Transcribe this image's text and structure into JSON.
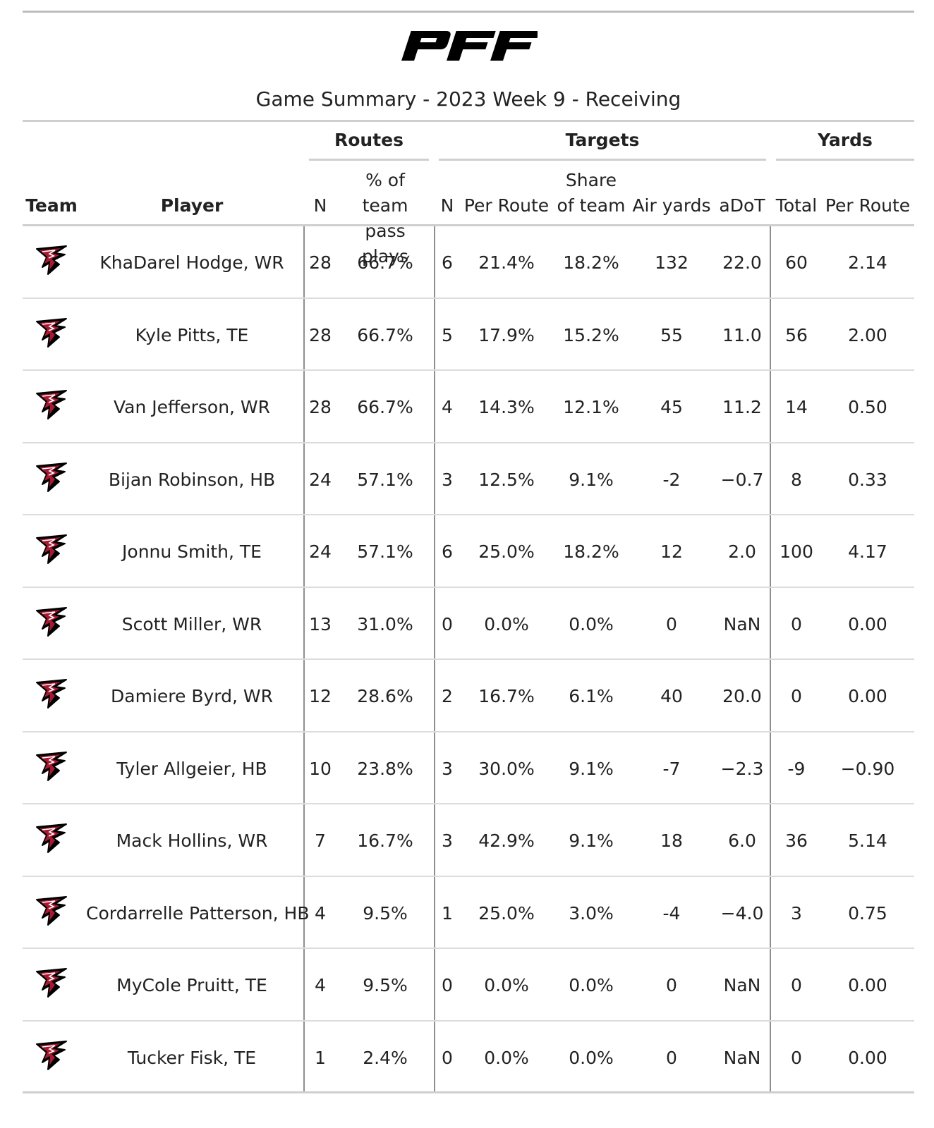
{
  "brand": {
    "logo_text": "PFF",
    "logo_color": "#000000"
  },
  "title": "Game Summary - 2023 Week 9 - Receiving",
  "spanners": {
    "routes": "Routes",
    "targets": "Targets",
    "yards": "Yards"
  },
  "columns": {
    "team": "Team",
    "player": "Player",
    "routes_n": "N",
    "routes_pct_line1": "% of team",
    "routes_pct_line2": "pass plays",
    "targets_n": "N",
    "targets_per_route": "Per Route",
    "targets_share_line1": "Share",
    "targets_share_line2": "of team",
    "air_yards": "Air yards",
    "adot": "aDoT",
    "yards_total": "Total",
    "yards_per_route": "Per Route"
  },
  "team_icon": "falcons-logo-icon",
  "colors": {
    "falcons_red": "#a71930",
    "falcons_black": "#000000"
  },
  "rows": [
    {
      "player": "KhaDarel Hodge, WR",
      "routes_n": "28",
      "routes_pct": "66.7%",
      "targets_n": "6",
      "targets_per_route": "21.4%",
      "target_share": "18.2%",
      "air_yards": "132",
      "adot": "22.0",
      "yards_total": "60",
      "yards_per_route": "2.14"
    },
    {
      "player": "Kyle Pitts, TE",
      "routes_n": "28",
      "routes_pct": "66.7%",
      "targets_n": "5",
      "targets_per_route": "17.9%",
      "target_share": "15.2%",
      "air_yards": "55",
      "adot": "11.0",
      "yards_total": "56",
      "yards_per_route": "2.00"
    },
    {
      "player": "Van Jefferson, WR",
      "routes_n": "28",
      "routes_pct": "66.7%",
      "targets_n": "4",
      "targets_per_route": "14.3%",
      "target_share": "12.1%",
      "air_yards": "45",
      "adot": "11.2",
      "yards_total": "14",
      "yards_per_route": "0.50"
    },
    {
      "player": "Bijan Robinson, HB",
      "routes_n": "24",
      "routes_pct": "57.1%",
      "targets_n": "3",
      "targets_per_route": "12.5%",
      "target_share": "9.1%",
      "air_yards": "-2",
      "adot": "−0.7",
      "yards_total": "8",
      "yards_per_route": "0.33"
    },
    {
      "player": "Jonnu Smith, TE",
      "routes_n": "24",
      "routes_pct": "57.1%",
      "targets_n": "6",
      "targets_per_route": "25.0%",
      "target_share": "18.2%",
      "air_yards": "12",
      "adot": "2.0",
      "yards_total": "100",
      "yards_per_route": "4.17"
    },
    {
      "player": "Scott Miller, WR",
      "routes_n": "13",
      "routes_pct": "31.0%",
      "targets_n": "0",
      "targets_per_route": "0.0%",
      "target_share": "0.0%",
      "air_yards": "0",
      "adot": "NaN",
      "yards_total": "0",
      "yards_per_route": "0.00"
    },
    {
      "player": "Damiere Byrd, WR",
      "routes_n": "12",
      "routes_pct": "28.6%",
      "targets_n": "2",
      "targets_per_route": "16.7%",
      "target_share": "6.1%",
      "air_yards": "40",
      "adot": "20.0",
      "yards_total": "0",
      "yards_per_route": "0.00"
    },
    {
      "player": "Tyler Allgeier, HB",
      "routes_n": "10",
      "routes_pct": "23.8%",
      "targets_n": "3",
      "targets_per_route": "30.0%",
      "target_share": "9.1%",
      "air_yards": "-7",
      "adot": "−2.3",
      "yards_total": "-9",
      "yards_per_route": "−0.90"
    },
    {
      "player": "Mack Hollins, WR",
      "routes_n": "7",
      "routes_pct": "16.7%",
      "targets_n": "3",
      "targets_per_route": "42.9%",
      "target_share": "9.1%",
      "air_yards": "18",
      "adot": "6.0",
      "yards_total": "36",
      "yards_per_route": "5.14"
    },
    {
      "player": "Cordarrelle Patterson, HB",
      "routes_n": "4",
      "routes_pct": "9.5%",
      "targets_n": "1",
      "targets_per_route": "25.0%",
      "target_share": "3.0%",
      "air_yards": "-4",
      "adot": "−4.0",
      "yards_total": "3",
      "yards_per_route": "0.75"
    },
    {
      "player": "MyCole Pruitt, TE",
      "routes_n": "4",
      "routes_pct": "9.5%",
      "targets_n": "0",
      "targets_per_route": "0.0%",
      "target_share": "0.0%",
      "air_yards": "0",
      "adot": "NaN",
      "yards_total": "0",
      "yards_per_route": "0.00"
    },
    {
      "player": "Tucker Fisk, TE",
      "routes_n": "1",
      "routes_pct": "2.4%",
      "targets_n": "0",
      "targets_per_route": "0.0%",
      "target_share": "0.0%",
      "air_yards": "0",
      "adot": "NaN",
      "yards_total": "0",
      "yards_per_route": "0.00"
    }
  ]
}
